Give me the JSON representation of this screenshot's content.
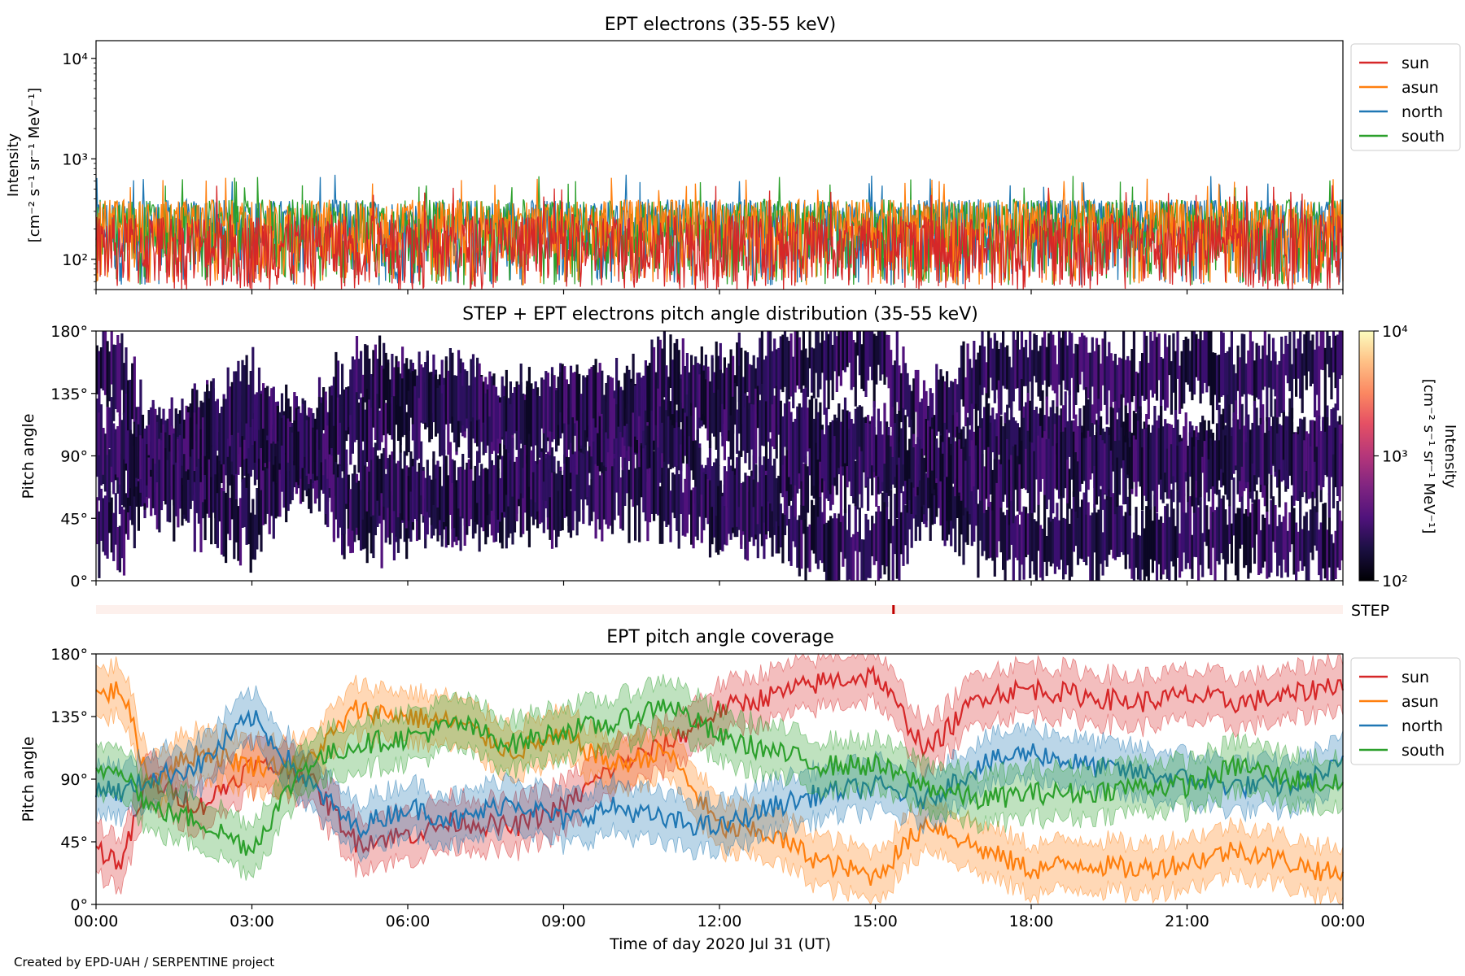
{
  "credit": "Created by EPD-UAH / SERPENTINE project",
  "xaxis": {
    "label": "Time of day 2020 Jul 31 (UT)",
    "range_hours": [
      0,
      24
    ],
    "ticks": [
      "00:00",
      "03:00",
      "06:00",
      "09:00",
      "12:00",
      "15:00",
      "18:00",
      "21:00",
      "00:00"
    ]
  },
  "colors": {
    "sun": "#d62728",
    "asun": "#ff7f0e",
    "north": "#1f77b4",
    "south": "#2ca02c",
    "step_bg": "#fdf0ec",
    "step_mark": "#c00000"
  },
  "chart_data": [
    {
      "type": "line",
      "title": "EPT electrons (35-55 keV)",
      "ylabel_line1": "Intensity",
      "ylabel_line2": "[cm⁻² s⁻¹ sr⁻¹ MeV⁻¹]",
      "yscale": "log",
      "ylim": [
        50,
        15000
      ],
      "yticks": [
        {
          "value": 100,
          "label": "10²"
        },
        {
          "value": 1000,
          "label": "10³"
        },
        {
          "value": 10000,
          "label": "10⁴"
        }
      ],
      "legend_position": "outside-right",
      "series": [
        {
          "name": "sun",
          "color": "#d62728",
          "typical_range": [
            50,
            300
          ],
          "max": 560
        },
        {
          "name": "asun",
          "color": "#ff7f0e",
          "typical_range": [
            100,
            400
          ],
          "max": 650
        },
        {
          "name": "north",
          "color": "#1f77b4",
          "typical_range": [
            100,
            400
          ],
          "max": 700
        },
        {
          "name": "south",
          "color": "#2ca02c",
          "typical_range": [
            100,
            400
          ],
          "max": 680
        }
      ]
    },
    {
      "type": "heatmap",
      "title": "STEP + EPT electrons pitch angle distribution (35-55 keV)",
      "ylabel": "Pitch angle",
      "ylim": [
        0,
        180
      ],
      "yticks": [
        "0°",
        "45°",
        "90°",
        "135°",
        "180°"
      ],
      "colorbar": {
        "label_line1": "Intensity",
        "label_line2": "[cm⁻² s⁻¹ sr⁻¹ MeV⁻¹]",
        "scale": "log",
        "range": [
          100,
          10000
        ],
        "ticks": [
          "10²",
          "10³",
          "10⁴"
        ]
      },
      "step_label": "STEP",
      "step_mark_hour": 15.35
    },
    {
      "type": "line",
      "title": "EPT pitch angle coverage",
      "ylabel": "Pitch angle",
      "ylim": [
        0,
        180
      ],
      "yticks": [
        "0°",
        "45°",
        "90°",
        "135°",
        "180°"
      ],
      "legend_position": "outside-right",
      "series": [
        {
          "name": "sun",
          "color": "#d62728",
          "hours": [
            0,
            0.5,
            1,
            2,
            3,
            4,
            5,
            6,
            7,
            8,
            9,
            10,
            11,
            12,
            13,
            14,
            15,
            16,
            17,
            18,
            19,
            20,
            21,
            22,
            23,
            24
          ],
          "values": [
            40,
            30,
            90,
            70,
            100,
            95,
            45,
            50,
            60,
            55,
            70,
            100,
            115,
            140,
            150,
            160,
            165,
            110,
            150,
            155,
            150,
            145,
            150,
            145,
            150,
            160
          ]
        },
        {
          "name": "asun",
          "color": "#ff7f0e",
          "hours": [
            0,
            0.5,
            1,
            2,
            3,
            4,
            5,
            6,
            7,
            8,
            9,
            10,
            11,
            12,
            13,
            14,
            15,
            16,
            17,
            18,
            19,
            20,
            21,
            22,
            23,
            24
          ],
          "values": [
            150,
            155,
            90,
            110,
            100,
            100,
            140,
            135,
            130,
            110,
            120,
            100,
            110,
            55,
            50,
            30,
            20,
            60,
            40,
            25,
            30,
            25,
            30,
            40,
            30,
            20
          ]
        },
        {
          "name": "north",
          "color": "#1f77b4",
          "hours": [
            0,
            0.5,
            1,
            2,
            3,
            4,
            5,
            6,
            7,
            8,
            9,
            10,
            11,
            12,
            13,
            14,
            15,
            16,
            17,
            18,
            19,
            20,
            21,
            22,
            23,
            24
          ],
          "values": [
            85,
            80,
            90,
            100,
            135,
            90,
            55,
            70,
            60,
            75,
            60,
            70,
            60,
            55,
            70,
            80,
            85,
            75,
            100,
            110,
            100,
            95,
            90,
            85,
            85,
            100
          ]
        },
        {
          "name": "south",
          "color": "#2ca02c",
          "hours": [
            0,
            0.5,
            1,
            2,
            3,
            4,
            5,
            6,
            7,
            8,
            9,
            10,
            11,
            12,
            13,
            14,
            15,
            16,
            17,
            18,
            19,
            20,
            21,
            22,
            23,
            24
          ],
          "values": [
            95,
            100,
            70,
            60,
            40,
            100,
            115,
            120,
            130,
            115,
            125,
            130,
            145,
            120,
            110,
            100,
            100,
            85,
            75,
            80,
            80,
            85,
            85,
            100,
            90,
            85
          ]
        }
      ]
    }
  ]
}
